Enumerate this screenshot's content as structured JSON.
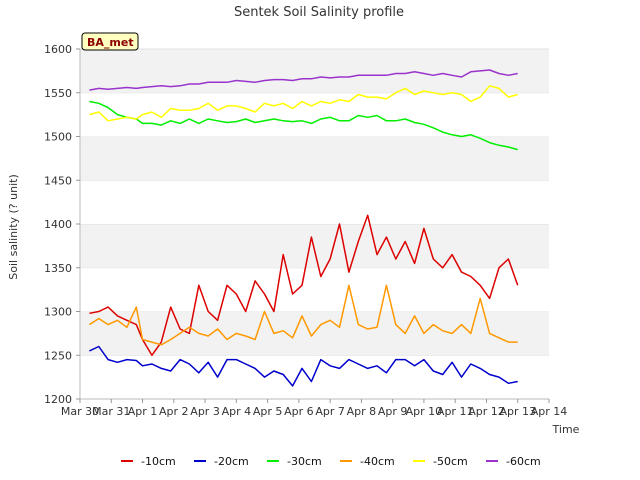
{
  "chart_data": {
    "type": "line",
    "title": "Sentek Soil Salinity profile",
    "xlabel": "Time",
    "ylabel": "Soil salinity (? unit)",
    "site_badge": "BA_met",
    "x_ticks": [
      "Mar 30",
      "Mar 31",
      "Apr 1",
      "Apr 2",
      "Apr 3",
      "Apr 4",
      "Apr 5",
      "Apr 6",
      "Apr 7",
      "Apr 8",
      "Apr 9",
      "Apr 10",
      "Apr 11",
      "Apr 12",
      "Apr 13",
      "Apr 14"
    ],
    "xlim": [
      0,
      15
    ],
    "ylim": [
      1200,
      1600
    ],
    "y_ticks": [
      1200,
      1250,
      1300,
      1350,
      1400,
      1450,
      1500,
      1550,
      1600
    ],
    "grid": "horizontal bands",
    "legend_position": "bottom",
    "series": [
      {
        "name": "-10cm",
        "color": "#dd0000",
        "x": [
          0.3,
          0.6,
          0.9,
          1.2,
          1.5,
          1.8,
          2.0,
          2.3,
          2.6,
          2.9,
          3.2,
          3.5,
          3.8,
          4.1,
          4.4,
          4.7,
          5.0,
          5.3,
          5.6,
          5.9,
          6.2,
          6.5,
          6.8,
          7.1,
          7.4,
          7.7,
          8.0,
          8.3,
          8.6,
          8.9,
          9.2,
          9.5,
          9.8,
          10.1,
          10.4,
          10.7,
          11.0,
          11.3,
          11.6,
          11.9,
          12.2,
          12.5,
          12.8,
          13.1,
          13.4,
          13.7,
          14.0
        ],
        "values": [
          1298,
          1300,
          1305,
          1295,
          1290,
          1285,
          1268,
          1250,
          1265,
          1305,
          1280,
          1275,
          1330,
          1300,
          1290,
          1330,
          1320,
          1300,
          1335,
          1320,
          1300,
          1365,
          1320,
          1330,
          1385,
          1340,
          1360,
          1400,
          1345,
          1380,
          1410,
          1365,
          1385,
          1360,
          1380,
          1355,
          1395,
          1360,
          1350,
          1365,
          1345,
          1340,
          1330,
          1315,
          1350,
          1360,
          1330
        ]
      },
      {
        "name": "-20cm",
        "color": "#0000cc",
        "x": [
          0.3,
          0.6,
          0.9,
          1.2,
          1.5,
          1.8,
          2.0,
          2.3,
          2.6,
          2.9,
          3.2,
          3.5,
          3.8,
          4.1,
          4.4,
          4.7,
          5.0,
          5.3,
          5.6,
          5.9,
          6.2,
          6.5,
          6.8,
          7.1,
          7.4,
          7.7,
          8.0,
          8.3,
          8.6,
          8.9,
          9.2,
          9.5,
          9.8,
          10.1,
          10.4,
          10.7,
          11.0,
          11.3,
          11.6,
          11.9,
          12.2,
          12.5,
          12.8,
          13.1,
          13.4,
          13.7,
          14.0
        ],
        "values": [
          1255,
          1260,
          1245,
          1242,
          1245,
          1244,
          1238,
          1240,
          1235,
          1232,
          1245,
          1240,
          1230,
          1242,
          1225,
          1245,
          1245,
          1240,
          1235,
          1225,
          1232,
          1228,
          1215,
          1235,
          1220,
          1245,
          1238,
          1235,
          1245,
          1240,
          1235,
          1238,
          1230,
          1245,
          1245,
          1238,
          1245,
          1232,
          1228,
          1242,
          1225,
          1240,
          1235,
          1228,
          1225,
          1218,
          1220
        ]
      },
      {
        "name": "-30cm",
        "color": "#00ee00",
        "x": [
          0.3,
          0.6,
          0.9,
          1.2,
          1.5,
          1.8,
          2.0,
          2.3,
          2.6,
          2.9,
          3.2,
          3.5,
          3.8,
          4.1,
          4.4,
          4.7,
          5.0,
          5.3,
          5.6,
          5.9,
          6.2,
          6.5,
          6.8,
          7.1,
          7.4,
          7.7,
          8.0,
          8.3,
          8.6,
          8.9,
          9.2,
          9.5,
          9.8,
          10.1,
          10.4,
          10.7,
          11.0,
          11.3,
          11.6,
          11.9,
          12.2,
          12.5,
          12.8,
          13.1,
          13.4,
          13.7,
          14.0
        ],
        "values": [
          1540,
          1538,
          1533,
          1525,
          1522,
          1520,
          1515,
          1515,
          1513,
          1518,
          1515,
          1520,
          1515,
          1520,
          1518,
          1516,
          1517,
          1520,
          1516,
          1518,
          1520,
          1518,
          1517,
          1518,
          1515,
          1520,
          1522,
          1518,
          1518,
          1524,
          1522,
          1524,
          1518,
          1518,
          1520,
          1516,
          1514,
          1510,
          1505,
          1502,
          1500,
          1502,
          1498,
          1493,
          1490,
          1488,
          1485
        ]
      },
      {
        "name": "-40cm",
        "color": "#ff9900",
        "x": [
          0.3,
          0.6,
          0.9,
          1.2,
          1.5,
          1.8,
          2.0,
          2.3,
          2.6,
          2.9,
          3.2,
          3.5,
          3.8,
          4.1,
          4.4,
          4.7,
          5.0,
          5.3,
          5.6,
          5.9,
          6.2,
          6.5,
          6.8,
          7.1,
          7.4,
          7.7,
          8.0,
          8.3,
          8.6,
          8.9,
          9.2,
          9.5,
          9.8,
          10.1,
          10.4,
          10.7,
          11.0,
          11.3,
          11.6,
          11.9,
          12.2,
          12.5,
          12.8,
          13.1,
          13.4,
          13.7,
          14.0
        ],
        "values": [
          1285,
          1292,
          1285,
          1290,
          1282,
          1305,
          1268,
          1265,
          1262,
          1268,
          1275,
          1282,
          1275,
          1272,
          1280,
          1268,
          1275,
          1272,
          1268,
          1300,
          1275,
          1278,
          1270,
          1295,
          1272,
          1285,
          1290,
          1282,
          1330,
          1285,
          1280,
          1282,
          1330,
          1285,
          1275,
          1295,
          1275,
          1285,
          1278,
          1275,
          1285,
          1275,
          1315,
          1275,
          1270,
          1265,
          1265
        ]
      },
      {
        "name": "-50cm",
        "color": "#ffff00",
        "x": [
          0.3,
          0.6,
          0.9,
          1.2,
          1.5,
          1.8,
          2.0,
          2.3,
          2.6,
          2.9,
          3.2,
          3.5,
          3.8,
          4.1,
          4.4,
          4.7,
          5.0,
          5.3,
          5.6,
          5.9,
          6.2,
          6.5,
          6.8,
          7.1,
          7.4,
          7.7,
          8.0,
          8.3,
          8.6,
          8.9,
          9.2,
          9.5,
          9.8,
          10.1,
          10.4,
          10.7,
          11.0,
          11.3,
          11.6,
          11.9,
          12.2,
          12.5,
          12.8,
          13.1,
          13.4,
          13.7,
          14.0
        ],
        "values": [
          1525,
          1528,
          1518,
          1520,
          1522,
          1520,
          1525,
          1528,
          1522,
          1532,
          1530,
          1530,
          1532,
          1538,
          1530,
          1535,
          1535,
          1532,
          1528,
          1538,
          1535,
          1538,
          1532,
          1540,
          1535,
          1540,
          1538,
          1542,
          1540,
          1548,
          1545,
          1545,
          1543,
          1550,
          1555,
          1548,
          1552,
          1550,
          1548,
          1550,
          1548,
          1540,
          1545,
          1558,
          1555,
          1545,
          1548
        ]
      },
      {
        "name": "-60cm",
        "color": "#9933cc",
        "x": [
          0.3,
          0.6,
          0.9,
          1.2,
          1.5,
          1.8,
          2.0,
          2.3,
          2.6,
          2.9,
          3.2,
          3.5,
          3.8,
          4.1,
          4.4,
          4.7,
          5.0,
          5.3,
          5.6,
          5.9,
          6.2,
          6.5,
          6.8,
          7.1,
          7.4,
          7.7,
          8.0,
          8.3,
          8.6,
          8.9,
          9.2,
          9.5,
          9.8,
          10.1,
          10.4,
          10.7,
          11.0,
          11.3,
          11.6,
          11.9,
          12.2,
          12.5,
          12.8,
          13.1,
          13.4,
          13.7,
          14.0
        ],
        "values": [
          1553,
          1555,
          1554,
          1555,
          1556,
          1555,
          1556,
          1557,
          1558,
          1557,
          1558,
          1560,
          1560,
          1562,
          1562,
          1562,
          1564,
          1563,
          1562,
          1564,
          1565,
          1565,
          1564,
          1566,
          1566,
          1568,
          1567,
          1568,
          1568,
          1570,
          1570,
          1570,
          1570,
          1572,
          1572,
          1574,
          1572,
          1570,
          1572,
          1570,
          1568,
          1574,
          1575,
          1576,
          1572,
          1570,
          1572
        ]
      }
    ]
  }
}
